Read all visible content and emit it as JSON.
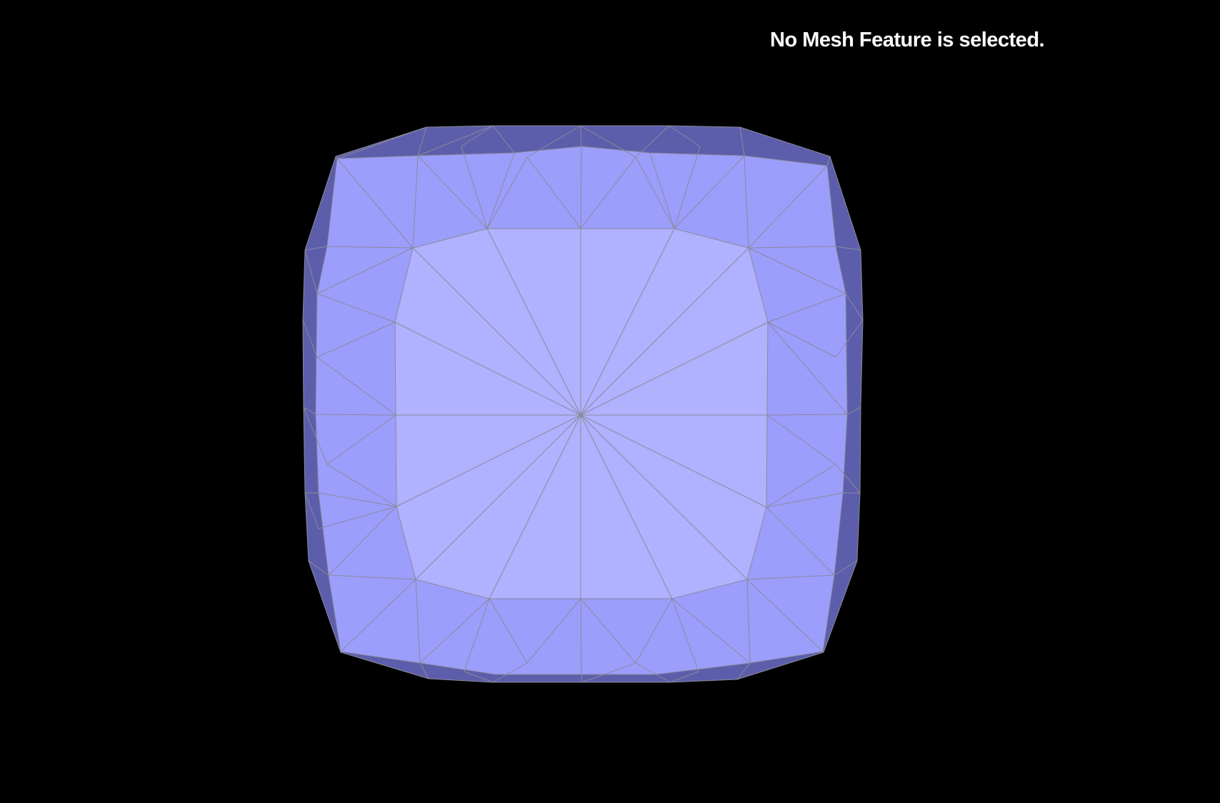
{
  "viewport": {
    "status_message": "No Mesh Feature is selected.",
    "background_color": "#000000"
  },
  "mesh": {
    "shape": "rounded-cube",
    "view": "front",
    "colors": {
      "front_face": "#b0b1ff",
      "ring_face": "#9c9efc",
      "rim_face": "#5c5eab",
      "edge_line": "#8a8a9a"
    }
  }
}
